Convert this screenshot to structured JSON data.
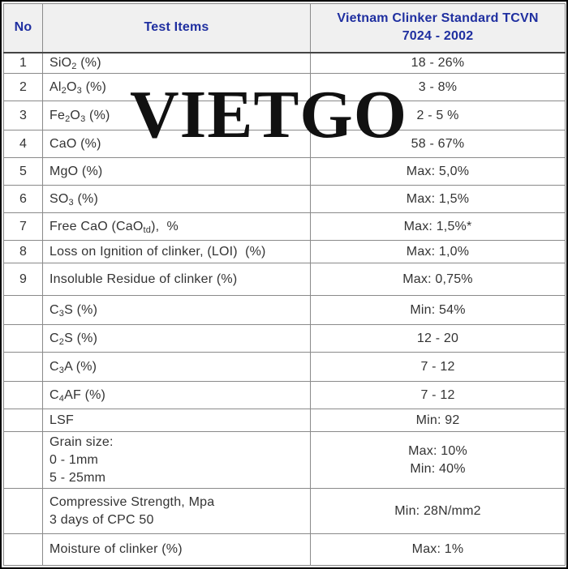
{
  "header": {
    "no": "No",
    "test_items": "Test Items",
    "standard_line1": "Vietnam Clinker Standard TCVN",
    "standard_line2": "7024 - 2002"
  },
  "watermark": "VIETGO",
  "rows": [
    {
      "no": "1",
      "item": {
        "pre": "SiO",
        "sub1": "2",
        "mid": "",
        "sub2": "",
        "post": " (%)"
      },
      "value": "18 - 26%"
    },
    {
      "no": "2",
      "item": {
        "pre": "Al",
        "sub1": "2",
        "mid": "O",
        "sub2": "3",
        "post": " (%)"
      },
      "value": "3 - 8%"
    },
    {
      "no": "3",
      "item": {
        "pre": "Fe",
        "sub1": "2",
        "mid": "O",
        "sub2": "3",
        "post": " (%)"
      },
      "value": "2 - 5 %"
    },
    {
      "no": "4",
      "item": {
        "pre": "CaO (%)",
        "sub1": "",
        "mid": "",
        "sub2": "",
        "post": ""
      },
      "value": "58 -  67%"
    },
    {
      "no": "5",
      "item": {
        "pre": "MgO (%)",
        "sub1": "",
        "mid": "",
        "sub2": "",
        "post": ""
      },
      "value": "Max: 5,0%"
    },
    {
      "no": "6",
      "item": {
        "pre": "SO",
        "sub1": "3",
        "mid": "",
        "sub2": "",
        "post": " (%)"
      },
      "value": "Max: 1,5%"
    },
    {
      "no": "7",
      "item": {
        "pre": "Free CaO (CaO",
        "sub1": "td",
        "mid": "),  %",
        "sub2": "",
        "post": ""
      },
      "value": "Max: 1,5%*"
    },
    {
      "no": "8",
      "item": {
        "pre": "Loss on Ignition of clinker, (LOI)  (%)",
        "sub1": "",
        "mid": "",
        "sub2": "",
        "post": ""
      },
      "value": "Max: 1,0%"
    },
    {
      "no": "9",
      "item": {
        "pre": "Insoluble Residue of clinker (%)",
        "sub1": "",
        "mid": "",
        "sub2": "",
        "post": ""
      },
      "value": "Max: 0,75%"
    },
    {
      "no": "",
      "item": {
        "pre": "C",
        "sub1": "3",
        "mid": "S (%)",
        "sub2": "",
        "post": ""
      },
      "value": "Min: 54%"
    },
    {
      "no": "",
      "item": {
        "pre": "C",
        "sub1": "2",
        "mid": "S (%)",
        "sub2": "",
        "post": ""
      },
      "value": "12 - 20"
    },
    {
      "no": "",
      "item": {
        "pre": "C",
        "sub1": "3",
        "mid": "A (%)",
        "sub2": "",
        "post": ""
      },
      "value": "7 - 12"
    },
    {
      "no": "",
      "item": {
        "pre": "C",
        "sub1": "4",
        "mid": "AF (%)",
        "sub2": "",
        "post": ""
      },
      "value": "7 - 12"
    },
    {
      "no": "",
      "item": {
        "pre": "LSF",
        "sub1": "",
        "mid": "",
        "sub2": "",
        "post": ""
      },
      "value": "Min: 92"
    }
  ],
  "grain_row": {
    "no": "",
    "lines": [
      "Grain size:",
      "0 - 1mm",
      "5 - 25mm"
    ],
    "values": [
      "Max: 10%",
      "Min: 40%"
    ]
  },
  "strength_row": {
    "no": "",
    "lines": [
      "Compressive Strength, Mpa",
      "3 days of CPC 50"
    ],
    "value": "Min: 28N/mm2"
  },
  "moisture_row": {
    "no": "",
    "item": "Moisture of clinker (%)",
    "value": "Max: 1%"
  }
}
